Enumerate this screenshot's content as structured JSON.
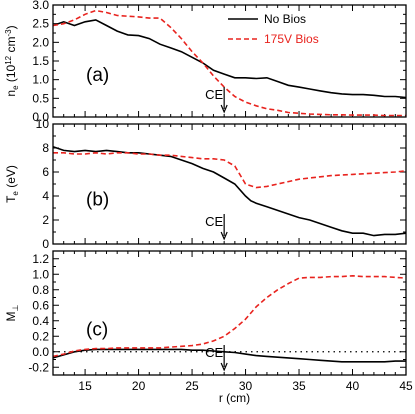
{
  "chart_data": [
    {
      "type": "line",
      "panel_label": "(a)",
      "ylabel": "n_e (10^12 cm^-3)",
      "ylabel_parts": {
        "main": "n",
        "sub": "e",
        "pre": " (10",
        "sup": "12",
        "unit": " cm",
        "unit_sup": "-3",
        "close": ")"
      },
      "xlim": [
        12,
        45
      ],
      "ylim": [
        0,
        3.0
      ],
      "yticks": [
        0.0,
        0.5,
        1.0,
        1.5,
        2.0,
        2.5,
        3.0
      ],
      "ytick_labels": [
        "0.0",
        "0.5",
        "1.0",
        "1.5",
        "2.0",
        "2.5",
        "3.0"
      ],
      "legend": {
        "placement": "top-right",
        "entries": [
          "No Bios",
          "175V Bios"
        ]
      },
      "annotation": {
        "text": "CE",
        "x": 28
      },
      "series": [
        {
          "name": "No Bios",
          "color": "#000000",
          "style": "solid",
          "points": [
            [
              12,
              2.45
            ],
            [
              13,
              2.55
            ],
            [
              14,
              2.45
            ],
            [
              15,
              2.55
            ],
            [
              16,
              2.6
            ],
            [
              17,
              2.45
            ],
            [
              18,
              2.3
            ],
            [
              19,
              2.2
            ],
            [
              20,
              2.18
            ],
            [
              21,
              2.1
            ],
            [
              22,
              1.95
            ],
            [
              23,
              1.85
            ],
            [
              24,
              1.75
            ],
            [
              25,
              1.6
            ],
            [
              26,
              1.45
            ],
            [
              27,
              1.25
            ],
            [
              28,
              1.15
            ],
            [
              29,
              1.05
            ],
            [
              30,
              1.05
            ],
            [
              31,
              1.03
            ],
            [
              32,
              1.05
            ],
            [
              33,
              0.95
            ],
            [
              34,
              0.85
            ],
            [
              35,
              0.8
            ],
            [
              36,
              0.75
            ],
            [
              37,
              0.7
            ],
            [
              38,
              0.65
            ],
            [
              39,
              0.62
            ],
            [
              40,
              0.6
            ],
            [
              41,
              0.6
            ],
            [
              42,
              0.58
            ],
            [
              43,
              0.55
            ],
            [
              44,
              0.55
            ],
            [
              45,
              0.52
            ]
          ]
        },
        {
          "name": "175V Bios",
          "color": "#e8231e",
          "style": "dashed",
          "points": [
            [
              12,
              2.45
            ],
            [
              13,
              2.5
            ],
            [
              14,
              2.6
            ],
            [
              15,
              2.75
            ],
            [
              16,
              2.85
            ],
            [
              17,
              2.8
            ],
            [
              18,
              2.72
            ],
            [
              19,
              2.7
            ],
            [
              20,
              2.68
            ],
            [
              21,
              2.65
            ],
            [
              22,
              2.65
            ],
            [
              23,
              2.4
            ],
            [
              24,
              2.1
            ],
            [
              25,
              1.75
            ],
            [
              26,
              1.45
            ],
            [
              27,
              1.1
            ],
            [
              28,
              0.8
            ],
            [
              29,
              0.55
            ],
            [
              30,
              0.4
            ],
            [
              31,
              0.3
            ],
            [
              32,
              0.22
            ],
            [
              33,
              0.18
            ],
            [
              34,
              0.12
            ],
            [
              35,
              0.1
            ],
            [
              36,
              0.08
            ],
            [
              37,
              0.07
            ],
            [
              38,
              0.06
            ],
            [
              39,
              0.06
            ],
            [
              40,
              0.05
            ],
            [
              41,
              0.05
            ],
            [
              42,
              0.05
            ],
            [
              43,
              0.04
            ],
            [
              44,
              0.04
            ],
            [
              45,
              0.04
            ]
          ]
        }
      ]
    },
    {
      "type": "line",
      "panel_label": "(b)",
      "ylabel": "T_e (eV)",
      "ylabel_parts": {
        "main": "T",
        "sub": "e",
        "pre": " (eV)"
      },
      "xlim": [
        12,
        45
      ],
      "ylim": [
        0,
        10
      ],
      "yticks": [
        0,
        2,
        4,
        6,
        8,
        10
      ],
      "ytick_labels": [
        "0",
        "2",
        "4",
        "6",
        "8",
        "10"
      ],
      "annotation": {
        "text": "CE",
        "x": 28
      },
      "series": [
        {
          "name": "No Bios",
          "color": "#000000",
          "style": "solid",
          "points": [
            [
              12,
              8.1
            ],
            [
              13,
              7.8
            ],
            [
              14,
              7.7
            ],
            [
              15,
              7.8
            ],
            [
              16,
              7.7
            ],
            [
              17,
              7.8
            ],
            [
              18,
              7.7
            ],
            [
              19,
              7.6
            ],
            [
              20,
              7.6
            ],
            [
              21,
              7.5
            ],
            [
              22,
              7.4
            ],
            [
              23,
              7.3
            ],
            [
              24,
              7.0
            ],
            [
              25,
              6.7
            ],
            [
              26,
              6.3
            ],
            [
              27,
              6.0
            ],
            [
              28,
              5.5
            ],
            [
              29,
              5.0
            ],
            [
              30,
              4.0
            ],
            [
              30.5,
              3.6
            ],
            [
              31,
              3.4
            ],
            [
              32,
              3.1
            ],
            [
              33,
              2.8
            ],
            [
              34,
              2.5
            ],
            [
              35,
              2.2
            ],
            [
              36,
              2.0
            ],
            [
              37,
              1.7
            ],
            [
              38,
              1.4
            ],
            [
              39,
              1.1
            ],
            [
              40,
              0.9
            ],
            [
              41,
              0.9
            ],
            [
              42,
              0.7
            ],
            [
              43,
              0.8
            ],
            [
              44,
              0.8
            ],
            [
              45,
              0.9
            ]
          ]
        },
        {
          "name": "175V Bios",
          "color": "#e8231e",
          "style": "dashed",
          "points": [
            [
              12,
              7.6
            ],
            [
              13,
              7.6
            ],
            [
              14,
              7.5
            ],
            [
              15,
              7.5
            ],
            [
              16,
              7.6
            ],
            [
              17,
              7.5
            ],
            [
              18,
              7.6
            ],
            [
              19,
              7.6
            ],
            [
              20,
              7.5
            ],
            [
              21,
              7.5
            ],
            [
              22,
              7.4
            ],
            [
              23,
              7.4
            ],
            [
              24,
              7.3
            ],
            [
              25,
              7.2
            ],
            [
              26,
              7.1
            ],
            [
              27,
              7.1
            ],
            [
              28,
              7.0
            ],
            [
              29,
              6.5
            ],
            [
              30,
              5.0
            ],
            [
              31,
              4.7
            ],
            [
              32,
              4.8
            ],
            [
              33,
              5.0
            ],
            [
              34,
              5.2
            ],
            [
              35,
              5.4
            ],
            [
              36,
              5.5
            ],
            [
              37,
              5.6
            ],
            [
              38,
              5.7
            ],
            [
              39,
              5.75
            ],
            [
              40,
              5.8
            ],
            [
              41,
              5.85
            ],
            [
              42,
              5.9
            ],
            [
              43,
              5.95
            ],
            [
              44,
              6.0
            ],
            [
              45,
              6.1
            ]
          ]
        }
      ]
    },
    {
      "type": "line",
      "panel_label": "(c)",
      "ylabel": "M⊥",
      "ylabel_parts": {
        "main": "M",
        "sub": "⊥",
        "pre": ""
      },
      "xlabel": "r (cm)",
      "xlim": [
        12,
        45
      ],
      "ylim": [
        -0.3,
        1.3
      ],
      "yticks": [
        -0.2,
        0.0,
        0.2,
        0.4,
        0.6,
        0.8,
        1.0,
        1.2
      ],
      "ytick_labels": [
        "-0.2",
        "0.0",
        "0.2",
        "0.4",
        "0.6",
        "0.8",
        "1.0",
        "1.2"
      ],
      "xticks": [
        15,
        20,
        25,
        30,
        35,
        40,
        45
      ],
      "xtick_labels": [
        "15",
        "20",
        "25",
        "30",
        "35",
        "40",
        "45"
      ],
      "zero_line": true,
      "annotation": {
        "text": "CE",
        "x": 28
      },
      "series": [
        {
          "name": "No Bios",
          "color": "#000000",
          "style": "solid",
          "points": [
            [
              12,
              -0.08
            ],
            [
              13,
              -0.04
            ],
            [
              14,
              0.0
            ],
            [
              15,
              0.02
            ],
            [
              16,
              0.03
            ],
            [
              17,
              0.03
            ],
            [
              18,
              0.03
            ],
            [
              19,
              0.03
            ],
            [
              20,
              0.03
            ],
            [
              21,
              0.03
            ],
            [
              22,
              0.03
            ],
            [
              23,
              0.03
            ],
            [
              24,
              0.03
            ],
            [
              25,
              0.02
            ],
            [
              26,
              0.02
            ],
            [
              27,
              0.01
            ],
            [
              28,
              0.0
            ],
            [
              29,
              -0.01
            ],
            [
              30,
              -0.03
            ],
            [
              31,
              -0.05
            ],
            [
              32,
              -0.06
            ],
            [
              33,
              -0.07
            ],
            [
              34,
              -0.08
            ],
            [
              35,
              -0.09
            ],
            [
              36,
              -0.1
            ],
            [
              37,
              -0.11
            ],
            [
              38,
              -0.12
            ],
            [
              39,
              -0.13
            ],
            [
              40,
              -0.13
            ],
            [
              41,
              -0.13
            ],
            [
              42,
              -0.13
            ],
            [
              43,
              -0.13
            ],
            [
              44,
              -0.12
            ],
            [
              45,
              -0.12
            ]
          ]
        },
        {
          "name": "175V Bios",
          "color": "#e8231e",
          "style": "dashed",
          "points": [
            [
              12,
              -0.06
            ],
            [
              13,
              -0.03
            ],
            [
              14,
              0.01
            ],
            [
              15,
              0.03
            ],
            [
              16,
              0.04
            ],
            [
              17,
              0.04
            ],
            [
              18,
              0.05
            ],
            [
              19,
              0.05
            ],
            [
              20,
              0.05
            ],
            [
              21,
              0.05
            ],
            [
              22,
              0.05
            ],
            [
              23,
              0.06
            ],
            [
              24,
              0.07
            ],
            [
              25,
              0.08
            ],
            [
              26,
              0.1
            ],
            [
              27,
              0.14
            ],
            [
              28,
              0.2
            ],
            [
              29,
              0.3
            ],
            [
              30,
              0.42
            ],
            [
              31,
              0.58
            ],
            [
              32,
              0.7
            ],
            [
              33,
              0.8
            ],
            [
              34,
              0.88
            ],
            [
              35,
              0.95
            ],
            [
              36,
              0.96
            ],
            [
              37,
              0.96
            ],
            [
              38,
              0.97
            ],
            [
              39,
              0.97
            ],
            [
              40,
              0.98
            ],
            [
              41,
              0.97
            ],
            [
              42,
              0.97
            ],
            [
              43,
              0.97
            ],
            [
              44,
              0.96
            ],
            [
              45,
              0.95
            ]
          ]
        }
      ]
    }
  ]
}
